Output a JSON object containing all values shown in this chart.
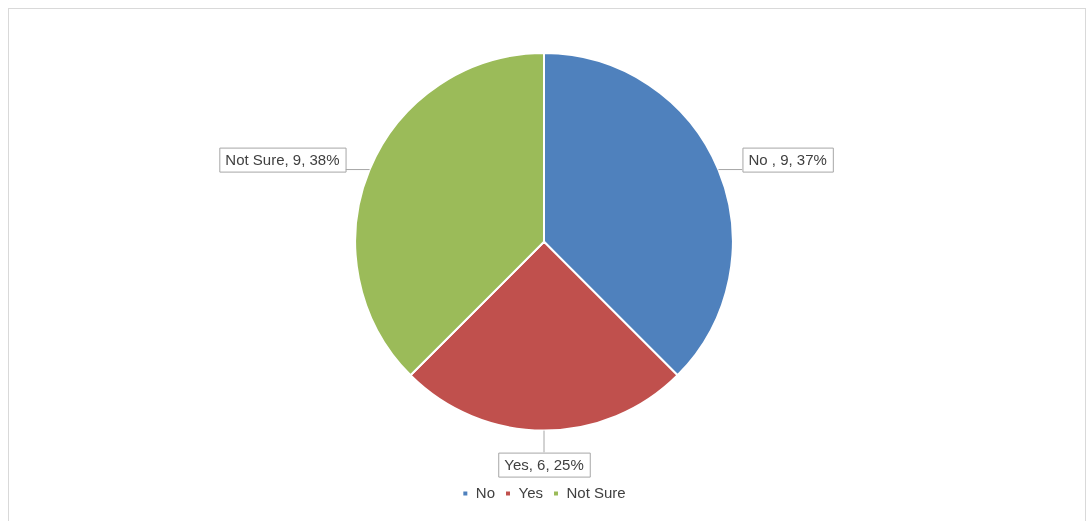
{
  "chart_data": {
    "type": "pie",
    "categories": [
      "No",
      "Yes",
      "Not Sure"
    ],
    "values": [
      9,
      6,
      9
    ],
    "colors": [
      "#4f81bd",
      "#c0504d",
      "#9bbb59"
    ],
    "value_labels": [
      "No , 9, 37%",
      "Yes, 6, 25%",
      "Not Sure, 9, 38%"
    ],
    "legend": "bottom"
  }
}
